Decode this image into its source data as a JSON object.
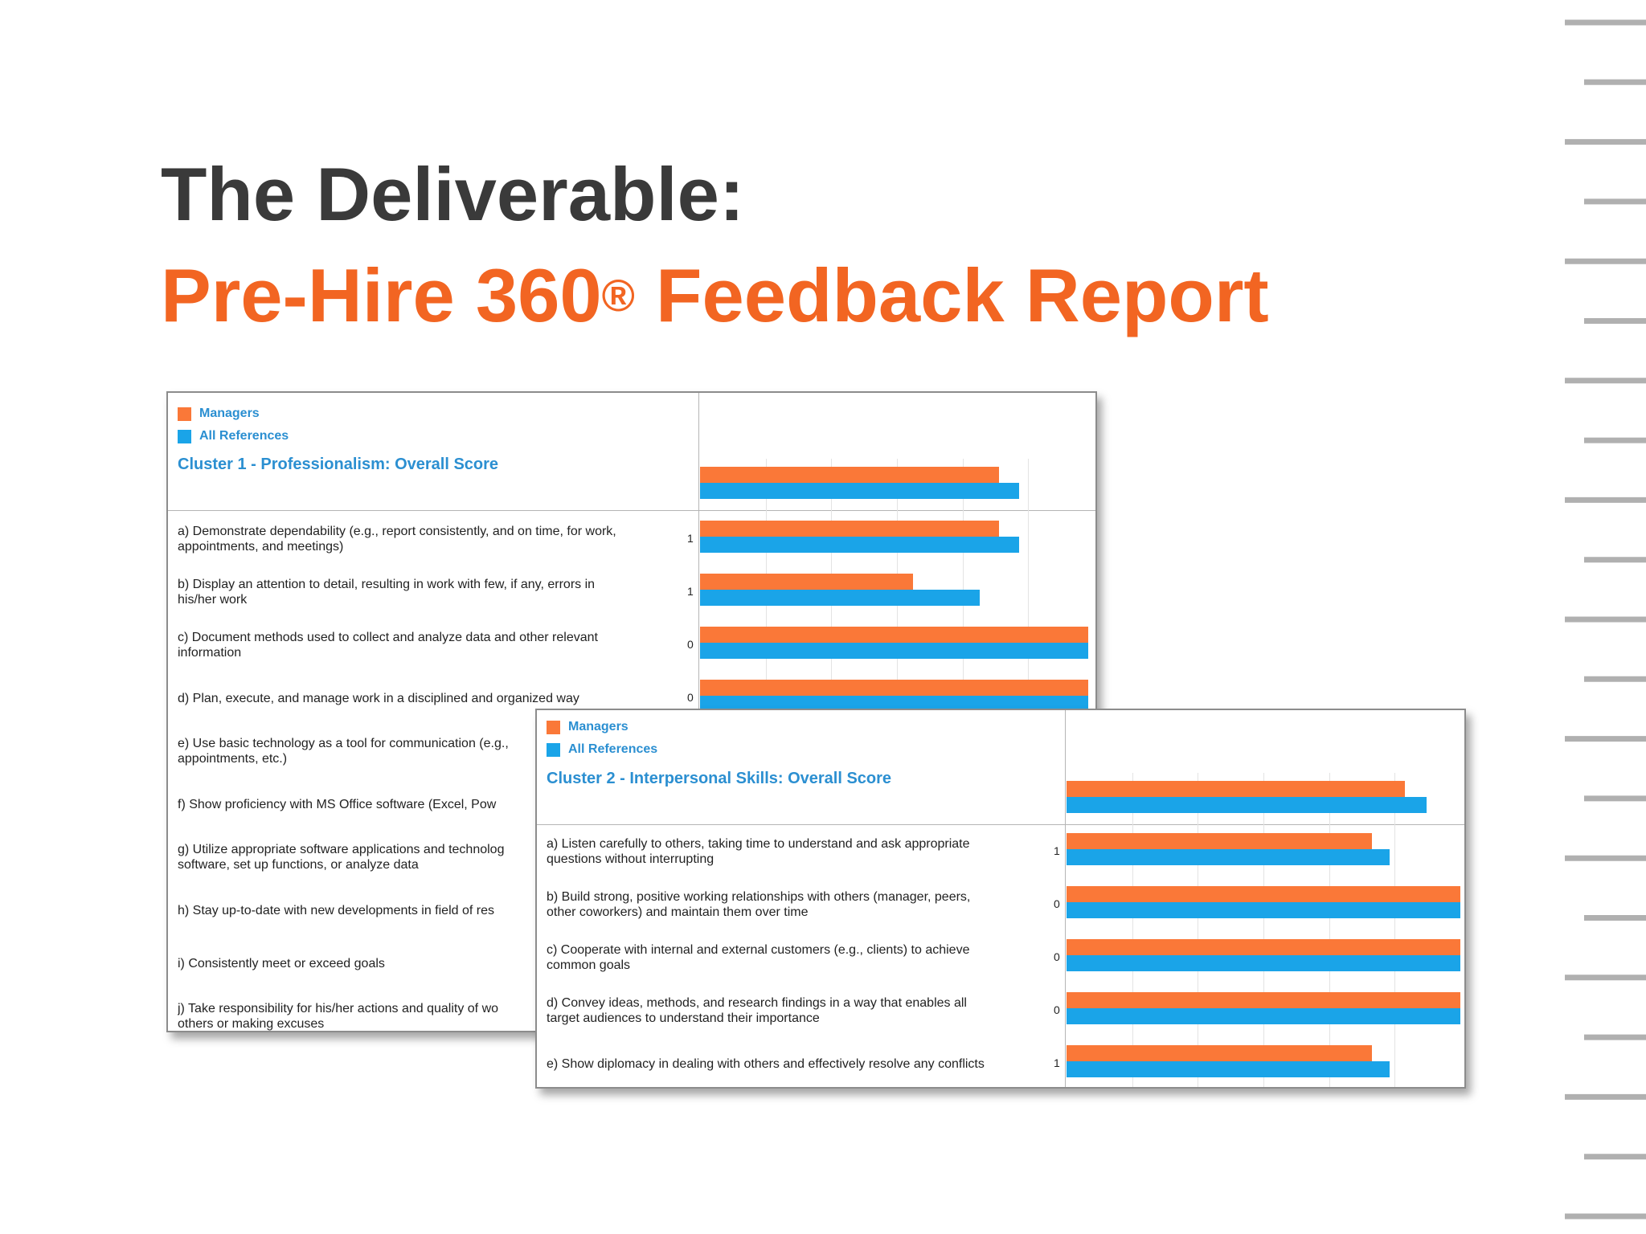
{
  "title": {
    "line1": "The Deliverable:",
    "line2_main": "Pre-Hire 360",
    "line2_sup": "®",
    "line2_tail": " Feedback Report"
  },
  "colors": {
    "managers": "#fa7838",
    "all_references": "#1aa4e8",
    "title_dark": "#3a3a3a",
    "title_orange": "#f26522",
    "cluster_blue": "#2b8fd1"
  },
  "report1": {
    "legend": {
      "managers": "Managers",
      "all_references": "All References"
    },
    "cluster_title": "Cluster 1 - Professionalism: Overall Score",
    "overall": {
      "managers": 0.76,
      "all_references": 0.81
    },
    "items": [
      {
        "line1": "a) Demonstrate dependability (e.g., report consistently, and on time, for work,",
        "line2": "appointments, and meetings)",
        "n": "1",
        "managers": 0.76,
        "all_references": 0.81
      },
      {
        "line1": "b) Display an attention to detail, resulting in work with few, if any, errors in",
        "line2": "his/her work",
        "n": "1",
        "managers": 0.54,
        "all_references": 0.71
      },
      {
        "line1": "c) Document methods used to collect and analyze data and other relevant",
        "line2": "information",
        "n": "0",
        "managers": 0.985,
        "all_references": 0.985
      },
      {
        "line1": "d) Plan, execute, and manage work in a disciplined and organized way",
        "line2": "",
        "n": "0",
        "managers": 0.985,
        "all_references": 0.985
      },
      {
        "line1": "e) Use basic technology as a tool for communication (e.g.,",
        "line2": "appointments, etc.)",
        "n": "",
        "managers": null,
        "all_references": null
      },
      {
        "line1": "f) Show proficiency with MS Office software (Excel, Pow",
        "line2": "",
        "n": "",
        "managers": null,
        "all_references": null
      },
      {
        "line1": "g) Utilize appropriate software applications and technolog",
        "line2": "software, set up functions, or analyze data",
        "n": "",
        "managers": null,
        "all_references": null
      },
      {
        "line1": "h) Stay up-to-date with new developments in field of res",
        "line2": "",
        "n": "",
        "managers": null,
        "all_references": null
      },
      {
        "line1": "i) Consistently meet or exceed goals",
        "line2": "",
        "n": "",
        "managers": null,
        "all_references": null
      },
      {
        "line1": "j) Take responsibility for his/her actions and quality of wo",
        "line2": "others or making excuses",
        "n": "",
        "managers": null,
        "all_references": null
      }
    ]
  },
  "report2": {
    "legend": {
      "managers": "Managers",
      "all_references": "All References"
    },
    "cluster_title": "Cluster 2 - Interpersonal Skills: Overall Score",
    "overall": {
      "managers": 0.86,
      "all_references": 0.915
    },
    "items": [
      {
        "line1": "a) Listen carefully to others, taking time to understand and ask appropriate",
        "line2": "questions without interrupting",
        "n": "1",
        "managers": 0.775,
        "all_references": 0.82
      },
      {
        "line1": "b) Build strong, positive working relationships with others (manager, peers,",
        "line2": "other coworkers) and maintain them over time",
        "n": "0",
        "managers": 1.0,
        "all_references": 1.0
      },
      {
        "line1": "c) Cooperate with internal and external customers (e.g., clients) to achieve",
        "line2": "common goals",
        "n": "0",
        "managers": 1.0,
        "all_references": 1.0
      },
      {
        "line1": "d) Convey ideas, methods, and research findings in a way that enables all",
        "line2": "target audiences to understand their importance",
        "n": "0",
        "managers": 1.0,
        "all_references": 1.0
      },
      {
        "line1": "e) Show diplomacy in dealing with others and effectively resolve any conflicts",
        "line2": "",
        "n": "1",
        "managers": 0.775,
        "all_references": 0.82
      }
    ]
  }
}
